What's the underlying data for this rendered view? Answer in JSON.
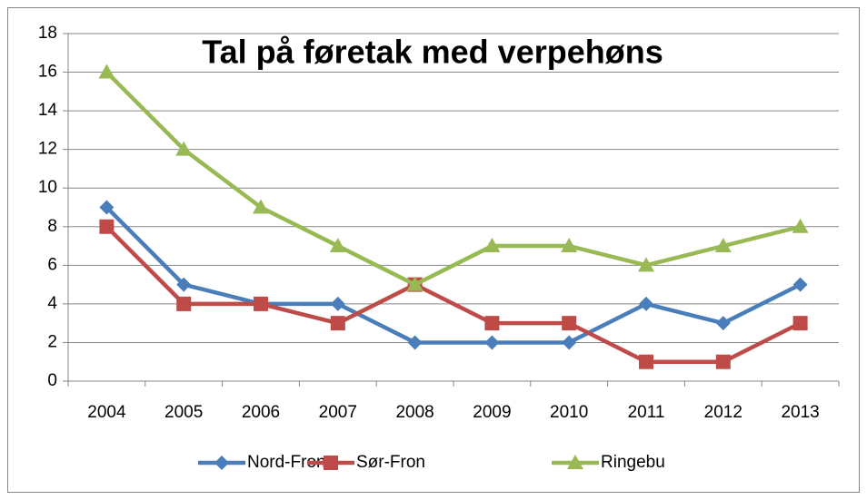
{
  "chart_data": {
    "type": "line",
    "title": "Tal på føretak med verpehøns",
    "categories": [
      "2004",
      "2005",
      "2006",
      "2007",
      "2008",
      "2009",
      "2010",
      "2011",
      "2012",
      "2013"
    ],
    "series": [
      {
        "name": "Nord-Fron",
        "color": "#4a7ebb",
        "values": [
          9,
          5,
          4,
          4,
          2,
          2,
          2,
          4,
          3,
          5
        ]
      },
      {
        "name": "Sør-Fron",
        "color": "#be4b48",
        "values": [
          8,
          4,
          4,
          3,
          5,
          3,
          3,
          1,
          1,
          3
        ]
      },
      {
        "name": "Ringebu",
        "color": "#98b954",
        "values": [
          16,
          12,
          9,
          7,
          5,
          7,
          7,
          6,
          7,
          8
        ]
      }
    ],
    "ylim": [
      0,
      18
    ],
    "yticks": [
      0,
      2,
      4,
      6,
      8,
      10,
      12,
      14,
      16,
      18
    ],
    "grid": true,
    "legend": "bottom"
  }
}
